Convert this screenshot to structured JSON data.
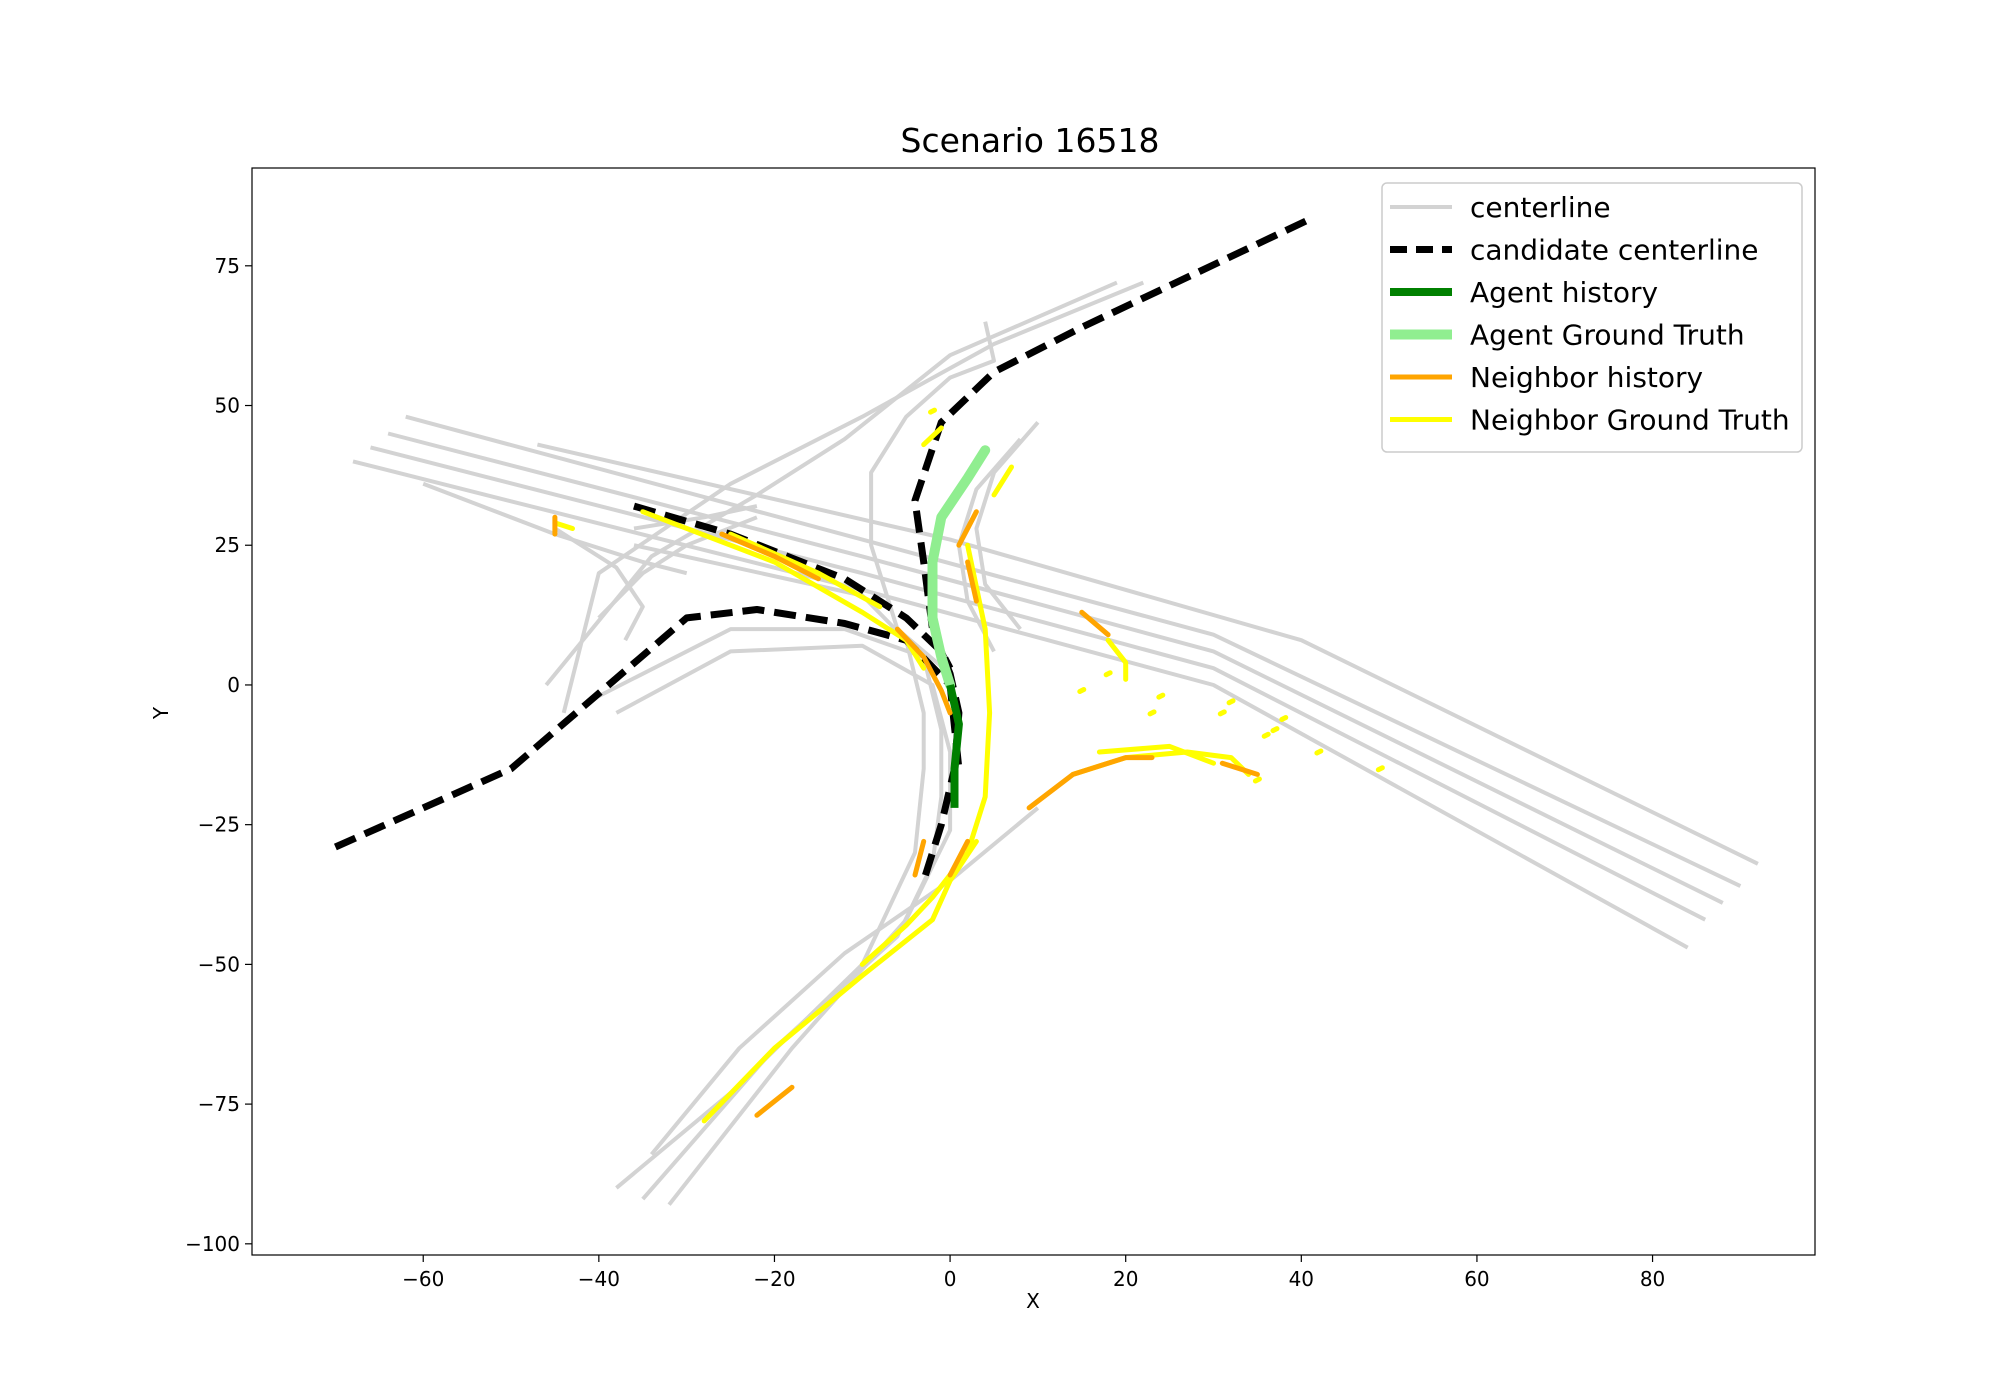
{
  "chart_data": {
    "type": "line",
    "title": "Scenario 16518",
    "xlabel": "X",
    "ylabel": "Y",
    "xlim": [
      -79.5,
      98.5
    ],
    "ylim": [
      -102,
      92.5
    ],
    "x_ticks": [
      -60,
      -40,
      -20,
      0,
      20,
      40,
      60,
      80
    ],
    "y_ticks": [
      75,
      50,
      25,
      0,
      -25,
      -50,
      -75,
      -100
    ],
    "grid": false,
    "legend_position": "upper right",
    "colors": {
      "centerline": "#d3d3d3",
      "candidate": "#000000",
      "agent_history": "#008000",
      "agent_gt": "#90ee90",
      "neighbor_history": "#ffa500",
      "neighbor_gt": "#ffff00"
    },
    "legend": [
      {
        "label": "centerline",
        "style": "centerline"
      },
      {
        "label": "candidate centerline",
        "style": "candidate"
      },
      {
        "label": "Agent history",
        "style": "agent_history"
      },
      {
        "label": "Agent Ground Truth",
        "style": "agent_gt"
      },
      {
        "label": "Neighbor history",
        "style": "neighbor_history"
      },
      {
        "label": "Neighbor Ground Truth",
        "style": "neighbor_gt"
      }
    ],
    "series": [
      {
        "style": "centerline",
        "lines": [
          [
            [
              -62,
              48
            ],
            [
              -10,
              26
            ],
            [
              30,
              9
            ],
            [
              90,
              -36
            ]
          ],
          [
            [
              -64,
              45
            ],
            [
              -10,
              23
            ],
            [
              30,
              6
            ],
            [
              88,
              -39
            ]
          ],
          [
            [
              -66,
              42.5
            ],
            [
              -10,
              20
            ],
            [
              30,
              3
            ],
            [
              86,
              -42
            ]
          ],
          [
            [
              -68,
              40
            ],
            [
              -10,
              17
            ],
            [
              30,
              0
            ],
            [
              84,
              -47
            ]
          ],
          [
            [
              -47,
              43
            ],
            [
              0,
              26
            ],
            [
              40,
              8
            ],
            [
              92,
              -32
            ]
          ],
          [
            [
              19,
              72
            ],
            [
              0,
              59
            ],
            [
              -12,
              44
            ],
            [
              -22,
              34
            ],
            [
              -34,
              23
            ],
            [
              -46,
              0
            ]
          ],
          [
            [
              22,
              72
            ],
            [
              5,
              61
            ],
            [
              -10,
              48
            ],
            [
              -25,
              36
            ],
            [
              -40,
              20
            ],
            [
              -44,
              -5
            ]
          ],
          [
            [
              -36,
              25
            ],
            [
              -10,
              16
            ],
            [
              -5,
              8
            ],
            [
              -3,
              -5
            ],
            [
              -3,
              -15
            ],
            [
              -4,
              -30
            ],
            [
              -10,
              -50
            ],
            [
              -25,
              -73
            ],
            [
              -38,
              -90
            ]
          ],
          [
            [
              -40,
              -2
            ],
            [
              -25,
              10
            ],
            [
              -12,
              10
            ],
            [
              -3,
              5
            ],
            [
              -1,
              -8
            ],
            [
              -1,
              -20
            ],
            [
              -2,
              -32
            ],
            [
              -6,
              -45
            ],
            [
              -20,
              -65
            ],
            [
              -35,
              -92
            ]
          ],
          [
            [
              -38,
              -5
            ],
            [
              -25,
              6
            ],
            [
              -10,
              7
            ],
            [
              -2,
              0
            ],
            [
              0,
              -12
            ],
            [
              0,
              -26
            ],
            [
              -5,
              -42
            ],
            [
              -18,
              -65
            ],
            [
              -32,
              -93
            ]
          ],
          [
            [
              10,
              -22
            ],
            [
              0,
              -35
            ],
            [
              -12,
              -48
            ],
            [
              -24,
              -65
            ],
            [
              -34,
              -84
            ]
          ],
          [
            [
              4,
              65
            ],
            [
              5,
              58
            ],
            [
              0,
              55
            ],
            [
              -5,
              48
            ],
            [
              -9,
              38
            ],
            [
              -9,
              25
            ],
            [
              -6,
              10
            ],
            [
              0,
              2
            ]
          ],
          [
            [
              8,
              44
            ],
            [
              3,
              35
            ],
            [
              1,
              25
            ],
            [
              2,
              15
            ],
            [
              5,
              6
            ]
          ],
          [
            [
              10,
              47
            ],
            [
              5,
              38
            ],
            [
              3,
              28
            ],
            [
              4,
              18
            ],
            [
              8,
              10
            ]
          ],
          [
            [
              -22,
              30
            ],
            [
              -30,
              25
            ],
            [
              -35,
              20
            ],
            [
              -40,
              12
            ]
          ],
          [
            [
              -60,
              36
            ],
            [
              -45,
              27
            ],
            [
              -35,
              22
            ],
            [
              -30,
              20
            ]
          ],
          [
            [
              -45,
              28
            ],
            [
              -38,
              21
            ],
            [
              -35,
              14
            ],
            [
              -37,
              8
            ]
          ],
          [
            [
              -22,
              32
            ],
            [
              -28,
              30
            ],
            [
              -36,
              28
            ]
          ]
        ]
      },
      {
        "style": "candidate",
        "lines": [
          [
            [
              40.5,
              83
            ],
            [
              15,
              64
            ],
            [
              5,
              56
            ],
            [
              -1,
              47
            ],
            [
              -4,
              33
            ],
            [
              -3,
              22
            ],
            [
              -2,
              10
            ],
            [
              0,
              2
            ],
            [
              1,
              -5
            ],
            [
              0.5,
              -15
            ],
            [
              -1,
              -25
            ],
            [
              -3,
              -35
            ]
          ],
          [
            [
              -36,
              32
            ],
            [
              -25,
              27
            ],
            [
              -12,
              19
            ],
            [
              -5,
              12
            ],
            [
              -1,
              6
            ],
            [
              0,
              3
            ]
          ],
          [
            [
              -70,
              -29
            ],
            [
              -50,
              -15
            ],
            [
              -30,
              12
            ],
            [
              -22,
              13.5
            ],
            [
              -12,
              11
            ],
            [
              -5,
              8
            ],
            [
              0,
              0
            ],
            [
              1,
              -15
            ]
          ]
        ]
      },
      {
        "style": "agent_gt",
        "lines": [
          [
            [
              4,
              42
            ],
            [
              2,
              37
            ],
            [
              -1,
              30
            ],
            [
              -2,
              22
            ],
            [
              -2,
              12
            ],
            [
              -1,
              5
            ],
            [
              0,
              0
            ]
          ]
        ]
      },
      {
        "style": "agent_history",
        "lines": [
          [
            [
              0,
              0
            ],
            [
              1,
              -7
            ],
            [
              0.5,
              -15
            ],
            [
              0.5,
              -22
            ]
          ]
        ]
      },
      {
        "style": "neighbor_gt",
        "lines": [
          [
            [
              -35,
              31
            ],
            [
              -20,
              22
            ],
            [
              -10,
              13
            ],
            [
              -5,
              8
            ],
            [
              -3,
              3
            ]
          ],
          [
            [
              -25,
              27
            ],
            [
              -15,
              20
            ],
            [
              -8,
              14
            ]
          ],
          [
            [
              2,
              25
            ],
            [
              4,
              10
            ],
            [
              4.5,
              -5
            ],
            [
              4,
              -20
            ],
            [
              2,
              -30
            ]
          ],
          [
            [
              3,
              -28
            ],
            [
              0,
              -35
            ],
            [
              -2,
              -42
            ],
            [
              -10,
              -52
            ],
            [
              -20,
              -65
            ],
            [
              -28,
              -78
            ]
          ],
          [
            [
              2,
              -30
            ],
            [
              -2,
              -38
            ],
            [
              -5,
              -43
            ],
            [
              -10,
              -50
            ]
          ],
          [
            [
              14,
              -16
            ],
            [
              20,
              -13
            ],
            [
              27,
              -12
            ],
            [
              32,
              -13
            ],
            [
              34,
              -16
            ]
          ],
          [
            [
              17,
              -12
            ],
            [
              25,
              -11
            ],
            [
              30,
              -14
            ]
          ],
          [
            [
              18,
              8
            ],
            [
              20,
              4
            ],
            [
              20,
              1
            ]
          ],
          [
            [
              5,
              34
            ],
            [
              7,
              39
            ]
          ],
          [
            [
              -3,
              43
            ],
            [
              -1,
              46
            ]
          ],
          [
            [
              -45,
              29
            ],
            [
              -43,
              28
            ]
          ],
          [
            [
              -2,
              49
            ]
          ],
          [
            [
              15,
              -1
            ]
          ],
          [
            [
              18,
              2
            ]
          ],
          [
            [
              23,
              -5
            ]
          ],
          [
            [
              24,
              -2
            ]
          ],
          [
            [
              31,
              -5
            ]
          ],
          [
            [
              32,
              -3
            ]
          ],
          [
            [
              36,
              -9
            ]
          ],
          [
            [
              37,
              -8
            ]
          ],
          [
            [
              38,
              -6
            ]
          ],
          [
            [
              42,
              -12
            ]
          ],
          [
            [
              49,
              -15
            ]
          ],
          [
            [
              35,
              -17
            ]
          ]
        ]
      },
      {
        "style": "neighbor_history",
        "lines": [
          [
            [
              -26,
              27
            ],
            [
              -20,
              23
            ],
            [
              -15,
              19
            ]
          ],
          [
            [
              -6,
              10
            ],
            [
              -3,
              5
            ],
            [
              -1,
              -1
            ],
            [
              0,
              -5
            ]
          ],
          [
            [
              3,
              31
            ],
            [
              1,
              25
            ]
          ],
          [
            [
              2,
              22
            ],
            [
              3,
              15
            ]
          ],
          [
            [
              -3,
              -28
            ],
            [
              -4,
              -34
            ]
          ],
          [
            [
              2,
              -28
            ],
            [
              0,
              -34
            ]
          ],
          [
            [
              9,
              -22
            ],
            [
              14,
              -16
            ],
            [
              20,
              -13
            ],
            [
              23,
              -13
            ]
          ],
          [
            [
              -22,
              -77
            ],
            [
              -18,
              -72
            ]
          ],
          [
            [
              15,
              13
            ],
            [
              18,
              9
            ]
          ],
          [
            [
              -45,
              30
            ],
            [
              -45,
              27
            ]
          ],
          [
            [
              31,
              -14
            ],
            [
              35,
              -16
            ]
          ]
        ]
      }
    ]
  }
}
